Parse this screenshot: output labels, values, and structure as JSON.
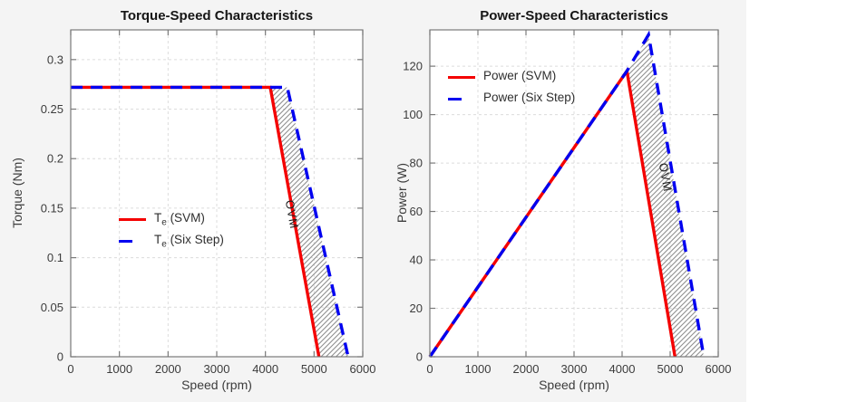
{
  "colors": {
    "figure_bg": "#f4f4f4",
    "axes_bg": "#ffffff",
    "grid": "#dcdcdc",
    "axis": "#7a7a7a",
    "tick_text": "#3c3c3c",
    "hatch": "#8f8f8f",
    "svm_red": "#f40000",
    "sixstep_blue": "#0000f0"
  },
  "chart_data": [
    {
      "type": "line",
      "title": "Torque-Speed Characteristics",
      "xlabel": "Speed (rpm)",
      "ylabel": "Torque (Nm)",
      "xlim": [
        0,
        6000
      ],
      "ylim": [
        0,
        0.33
      ],
      "xticks": [
        0,
        1000,
        2000,
        3000,
        4000,
        5000,
        6000
      ],
      "yticks": [
        0,
        0.05,
        0.1,
        0.15,
        0.2,
        0.25,
        0.3
      ],
      "grid": true,
      "legend_position": "middle-left",
      "region_label": "OVM",
      "region_points": [
        [
          4100,
          0.272
        ],
        [
          4450,
          0.272
        ],
        [
          5700,
          0
        ],
        [
          5100,
          0
        ]
      ],
      "series": [
        {
          "name": "Te (SVM)",
          "name_pre": "T",
          "name_sub": "e",
          "name_post": " (SVM)",
          "style": "solid",
          "color": "#f40000",
          "points": [
            [
              0,
              0.272
            ],
            [
              4100,
              0.272
            ],
            [
              5100,
              0
            ]
          ]
        },
        {
          "name": "Te (Six Step)",
          "name_pre": "T",
          "name_sub": "e",
          "name_post": " (Six Step)",
          "style": "dashed",
          "color": "#0000f0",
          "points": [
            [
              0,
              0.272
            ],
            [
              4450,
              0.272
            ],
            [
              5700,
              0
            ]
          ]
        }
      ]
    },
    {
      "type": "line",
      "title": "Power-Speed Characteristics",
      "xlabel": "Speed (rpm)",
      "ylabel": "Power (W)",
      "xlim": [
        0,
        6000
      ],
      "ylim": [
        0,
        135
      ],
      "xticks": [
        0,
        1000,
        2000,
        3000,
        4000,
        5000,
        6000
      ],
      "yticks": [
        0,
        20,
        40,
        60,
        80,
        100,
        120
      ],
      "grid": true,
      "legend_position": "top-left",
      "region_label": "OVM",
      "region_points": [
        [
          4100,
          118
        ],
        [
          4550,
          133
        ],
        [
          5700,
          0
        ],
        [
          5100,
          0
        ]
      ],
      "series": [
        {
          "name": "Power (SVM)",
          "name_pre": "Power",
          "name_sub": "",
          "name_post": " (SVM)",
          "style": "solid",
          "color": "#f40000",
          "points": [
            [
              0,
              0
            ],
            [
              4100,
              118
            ],
            [
              5100,
              0
            ]
          ]
        },
        {
          "name": "Power (Six Step)",
          "name_pre": "Power",
          "name_sub": "",
          "name_post": " (Six Step)",
          "style": "dashed",
          "color": "#0000f0",
          "points": [
            [
              0,
              0
            ],
            [
              4100,
              118
            ],
            [
              4550,
              133
            ],
            [
              5700,
              0
            ]
          ]
        }
      ]
    }
  ]
}
